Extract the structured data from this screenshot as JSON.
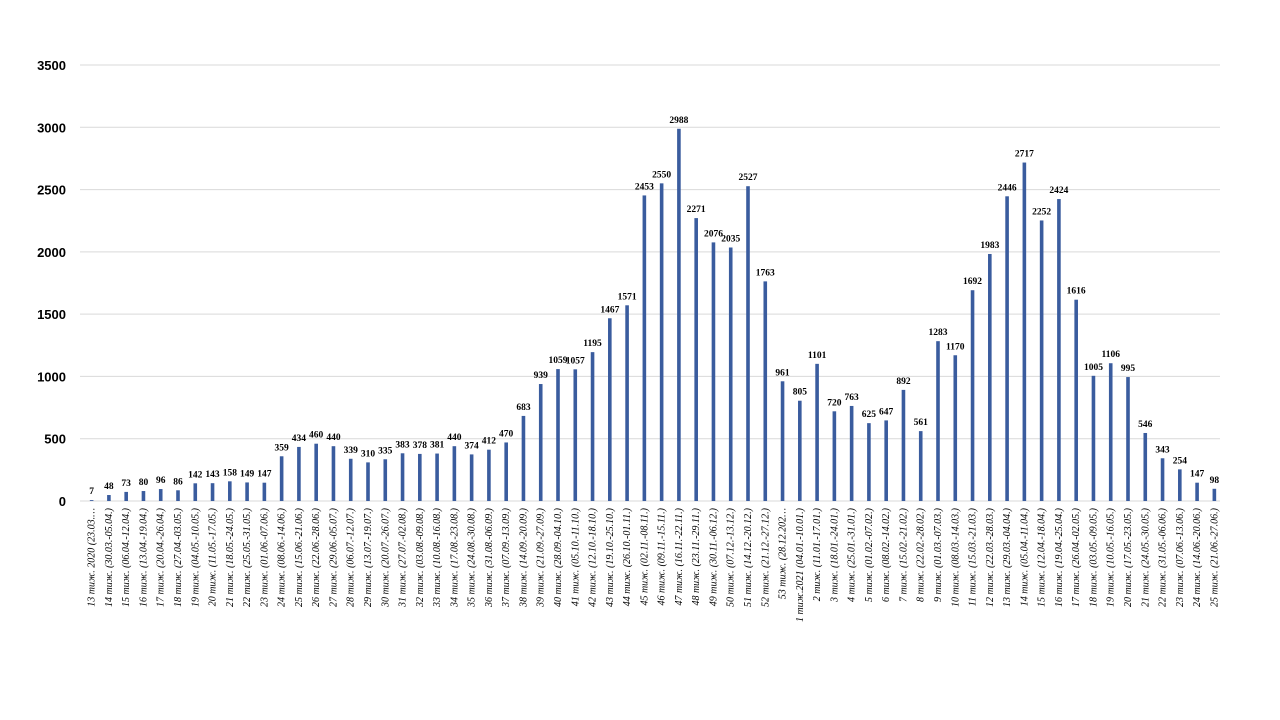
{
  "chart_data": {
    "type": "bar",
    "title": "",
    "xlabel": "",
    "ylabel": "",
    "ylim": [
      0,
      3500
    ],
    "yticks": [
      0,
      500,
      1000,
      1500,
      2000,
      2500,
      3000,
      3500
    ],
    "grid": true,
    "legend": "none",
    "bar_color": "#3a5c9e",
    "categories": [
      "13 тиж. 2020 (23.03.…",
      "14 тиж. (30.03.-05.04.)",
      "15 тиж. (06.04.-12.04.)",
      "16 тиж. (13.04.-19.04.)",
      "17 тиж. (20.04.-26.04.)",
      "18 тиж. (27.04.-03.05.)",
      "19 тиж. (04.05.-10.05.)",
      "20 тиж. (11.05.-17.05.)",
      "21 тиж. (18.05.-24.05.)",
      "22 тиж. (25.05.-31.05.)",
      "23 тиж. (01.06.-07.06.)",
      "24 тиж. (08.06.-14.06.)",
      "25 тиж. (15.06.-21.06.)",
      "26 тиж. (22.06.-28.06.)",
      "27 тиж. (29.06.-05.07.)",
      "28 тиж. (06.07.-12.07.)",
      "29 тиж. (13.07.-19.07.)",
      "30 тиж. (20.07.-26.07.)",
      "31 тиж. (27.07.-02.08.)",
      "32 тиж. (03.08.-09.08.)",
      "33 тиж. (10.08.-16.08.)",
      "34 тиж. (17.08.-23.08.)",
      "35 тиж. (24.08.-30.08.)",
      "36 тиж. (31.08.-06.09.)",
      "37 тиж. (07.09.-13.09.)",
      "38 тиж. (14.09.-20.09.)",
      "39 тиж. (21.09.-27.09.)",
      "40 тиж. (28.09.-04.10.)",
      "41 тиж. (05.10.-11.10.)",
      "42 тиж. (12.10.-18.10.)",
      "43 тиж. (19.10.-25.10.)",
      "44 тиж. (26.10.-01.11.)",
      "45 тиж. (02.11.-08.11.)",
      "46 тиж. (09.11.-15.11.)",
      "47 тиж. (16.11.-22.11.)",
      "48 тиж. (23.11.-29.11.)",
      "49 тиж. (30.11.-06.12.)",
      "50 тиж. (07.12.-13.12.)",
      "51 тиж. (14.12.-20.12.)",
      "52 тиж. (21.12.-27.12.)",
      "53 тиж. (28.12.202…",
      "1 тиж.2021 (04.01.-10.01.)",
      "2 тиж. (11.01.-17.01.)",
      "3 тиж. (18.01.-24.01.)",
      "4 тиж. (25.01.-31.01.)",
      "5 тиж. (01.02.-07.02.)",
      "6 тиж. (08.02.-14.02.)",
      "7 тиж. (15.02.-21.02.)",
      "8 тиж. (22.02.-28.02.)",
      "9 тиж. (01.03.-07.03.)",
      "10 тиж. (08.03.-14.03.)",
      "11 тиж. (15.03.-21.03.)",
      "12 тиж. (22.03.-28.03.)",
      "13 тиж. (29.03.-04.04.)",
      "14 тиж. (05.04.-11.04.)",
      "15 тиж. (12.04.-18.04.)",
      "16 тиж. (19.04.-25.04.)",
      "17 тиж. (26.04.-02.05.)",
      "18 тиж. (03.05.-09.05.)",
      "19 тиж. (10.05.-16.05.)",
      "20 тиж. (17.05.-23.05.)",
      "21 тиж. (24.05.-30.05.)",
      "22 тиж. (31.05.-06.06.)",
      "23 тиж. (07.06.-13.06.)",
      "24 тиж. (14.06.-20.06.)",
      "25 тиж. (21.06.-27.06.)"
    ],
    "values": [
      7,
      48,
      73,
      80,
      96,
      86,
      142,
      143,
      158,
      149,
      147,
      359,
      434,
      460,
      440,
      339,
      310,
      335,
      383,
      378,
      381,
      440,
      374,
      412,
      470,
      683,
      939,
      1059,
      1057,
      1195,
      1467,
      1571,
      2453,
      2550,
      2988,
      2271,
      2076,
      2035,
      2527,
      1763,
      961,
      805,
      1101,
      720,
      763,
      625,
      647,
      892,
      561,
      1283,
      1170,
      1692,
      1983,
      2446,
      2717,
      2252,
      2424,
      1616,
      1005,
      1106,
      995,
      546,
      343,
      254,
      147,
      98
    ]
  }
}
